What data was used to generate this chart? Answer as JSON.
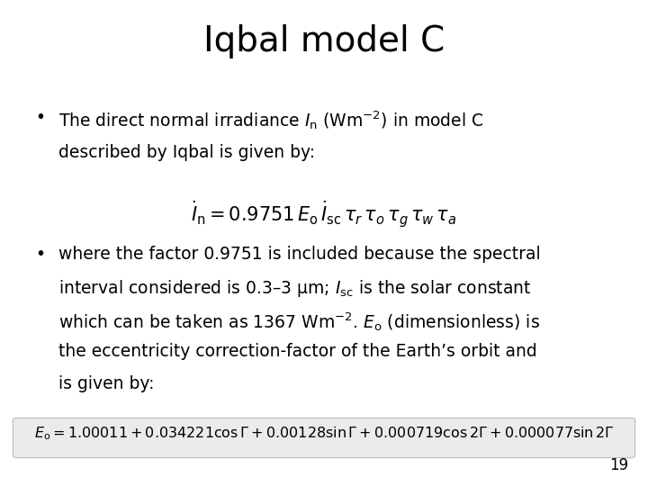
{
  "title": "Iqbal model C",
  "title_fontsize": 28,
  "background_color": "#ffffff",
  "text_color": "#000000",
  "formula1": "$\\dot{I}_{\\rm n} = 0.9751\\, E_{\\rm o}\\, \\dot{I}_{\\rm sc}\\, \\tau_r\\, \\tau_o\\, \\tau_g\\, \\tau_w\\, \\tau_a$",
  "formula2": "$E_{\\rm o} = 1.00011 + 0.034221\\cos\\Gamma + 0.00128\\sin\\Gamma + 0.000719\\cos 2\\Gamma + 0.000077\\sin 2\\Gamma$",
  "bullet1_line1": "The direct normal irradiance $I_{\\rm n}$ (Wm$^{-2}$) in model C",
  "bullet1_line2": "described by Iqbal is given by:",
  "bullet2_line1": "where the factor 0.9751 is included because the spectral",
  "bullet2_line2": "interval considered is 0.3–3 μm; $I_{\\rm sc}$ is the solar constant",
  "bullet2_line3": "which can be taken as 1367 Wm$^{-2}$. $E_{\\rm o}$ (dimensionless) is",
  "bullet2_line4": "the eccentricity correction-factor of the Earth’s orbit and",
  "bullet2_line5": "is given by:",
  "page_number": "19",
  "box_color": "#ebebeb",
  "box_edge_color": "#bbbbbb",
  "body_fontsize": 13.5,
  "formula1_fontsize": 15,
  "formula2_fontsize": 11.5
}
